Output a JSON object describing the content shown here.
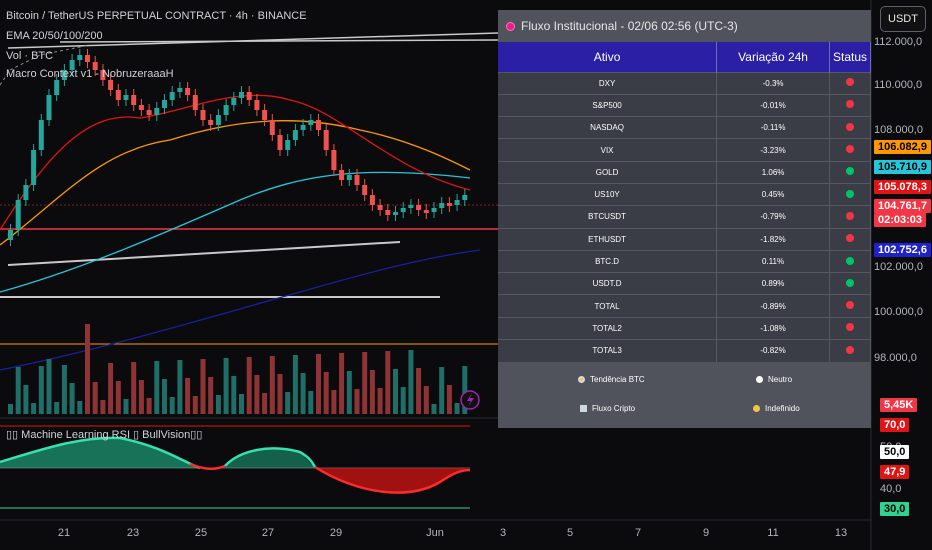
{
  "header": {
    "symbol_line": "Bitcoin / TetherUS PERPETUAL CONTRACT · 4h · BINANCE",
    "indicator_1": "EMA 20/50/100/200",
    "indicator_2": "Vol · BTC",
    "indicator_3": "Macro Context v1 - NobruzeraaaH",
    "oscillator": "▯▯ Machine Learning RSI ▯ BullVision▯▯"
  },
  "currency_button": "USDT",
  "price_axis": {
    "levels": [
      {
        "label": "112.000,0"
      },
      {
        "label": "110.000,0"
      },
      {
        "label": "108.000,0"
      },
      {
        "label": "102.000,0"
      },
      {
        "label": "100.000,0"
      },
      {
        "label": "98.000,0"
      }
    ],
    "badges": [
      {
        "label": "106.082,9",
        "color": "#ff9800",
        "text": "#000"
      },
      {
        "label": "105.710,9",
        "color": "#26c6da",
        "text": "#000"
      },
      {
        "label": "105.078,3",
        "color": "#e01414",
        "text": "#fff"
      },
      {
        "label": "104.761,7",
        "color": "#f23645",
        "text": "#fff"
      },
      {
        "label": "02:03:03",
        "color": "#f23645",
        "text": "#fff"
      },
      {
        "label": "102.752,6",
        "color": "#1e22c8",
        "text": "#fff"
      }
    ]
  },
  "volume_badge": "5,45K",
  "rsi_axis": {
    "upper": "70,0",
    "level_50": "50,0",
    "current": "47,9",
    "level_40": "40,0",
    "lower": "30,0"
  },
  "x_axis": [
    "21",
    "23",
    "25",
    "27",
    "29",
    "Jun",
    "3",
    "5",
    "7",
    "9",
    "11",
    "13"
  ],
  "panel": {
    "title": "Fluxo Institucional - 02/06 02:56 (UTC-3)",
    "columns": [
      "Ativo",
      "Variação 24h",
      "Status"
    ],
    "rows": [
      {
        "asset": "DXY",
        "change": "-0.3%",
        "status": "red"
      },
      {
        "asset": "S&P500",
        "change": "-0.01%",
        "status": "red"
      },
      {
        "asset": "NASDAQ",
        "change": "-0.11%",
        "status": "red"
      },
      {
        "asset": "VIX",
        "change": "-3.23%",
        "status": "red"
      },
      {
        "asset": "GOLD",
        "change": "1.06%",
        "status": "green"
      },
      {
        "asset": "US10Y",
        "change": "0.45%",
        "status": "green"
      },
      {
        "asset": "BTCUSDT",
        "change": "-0.79%",
        "status": "red"
      },
      {
        "asset": "ETHUSDT",
        "change": "-1.82%",
        "status": "red"
      },
      {
        "asset": "BTC.D",
        "change": "0.11%",
        "status": "green"
      },
      {
        "asset": "USDT.D",
        "change": "0.89%",
        "status": "green"
      },
      {
        "asset": "TOTAL",
        "change": "-0.89%",
        "status": "red"
      },
      {
        "asset": "TOTAL2",
        "change": "-1.08%",
        "status": "red"
      },
      {
        "asset": "TOTAL3",
        "change": "-0.82%",
        "status": "red"
      }
    ],
    "legend": {
      "trend_label": "Tendência BTC",
      "trend_value": "Neutro",
      "flow_label": "Fluxo Cripto",
      "flow_value": "Indefinido"
    }
  },
  "colors": {
    "bull": "#26a69a",
    "bear": "#ef5350",
    "status_red": "#f23645",
    "status_green": "#00c46a"
  }
}
